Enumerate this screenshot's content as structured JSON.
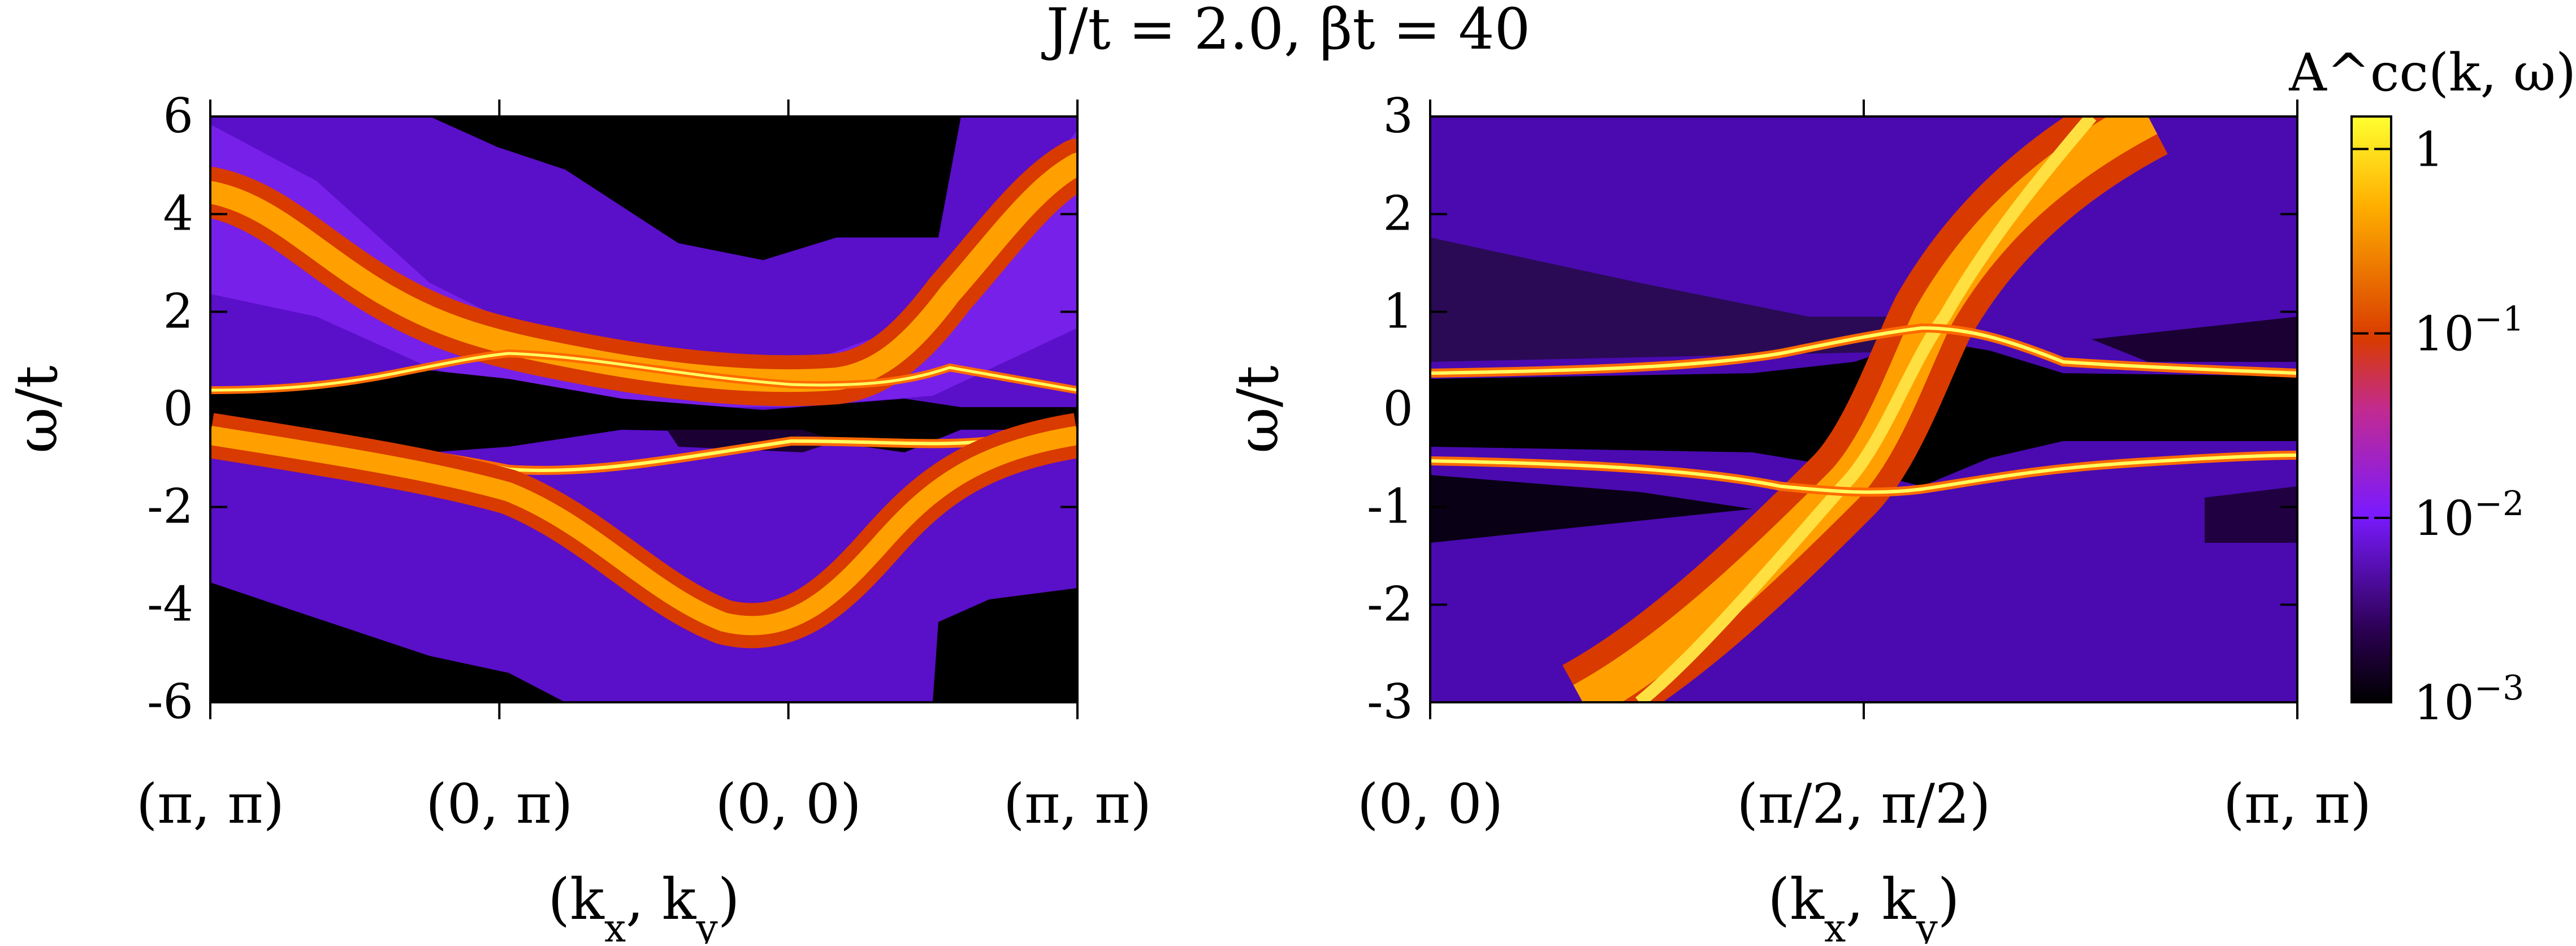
{
  "figure": {
    "title": "J/t = 2.0, βt = 40"
  },
  "chart_data": [
    {
      "type": "heatmap",
      "title": "",
      "xlabel": "(k_x, k_y)",
      "ylabel": "ω/t",
      "x_categories": [
        "(π, π)",
        "(0, π)",
        "(0, 0)",
        "(π, π)"
      ],
      "ylim": [
        -6,
        6
      ],
      "yticks": [
        6,
        4,
        2,
        0,
        -2,
        -4,
        -6
      ],
      "ytick_labels": [
        "6",
        "4",
        "2",
        "0",
        "-2",
        "-4",
        "-6"
      ],
      "bands": [
        {
          "name": "upper broad band",
          "x": [
            0,
            1,
            2,
            2.6,
            3
          ],
          "omega": [
            4.8,
            1.6,
            0.6,
            1.2,
            4.8
          ]
        },
        {
          "name": "upper quasiparticle",
          "x": [
            0,
            0.8,
            1,
            2,
            2.6,
            3
          ],
          "omega": [
            0.4,
            0.7,
            1.0,
            0.4,
            0.6,
            0.4
          ]
        },
        {
          "name": "lower quasiparticle",
          "x": [
            0,
            1,
            2,
            2.6,
            3
          ],
          "omega": [
            -0.5,
            -1.2,
            -0.9,
            -0.7,
            -0.5
          ]
        },
        {
          "name": "lower broad band",
          "x": [
            0,
            1,
            2,
            2.6,
            3
          ],
          "omega": [
            -0.5,
            -1.5,
            -4.6,
            -1.5,
            -0.5
          ]
        }
      ]
    },
    {
      "type": "heatmap",
      "title": "",
      "xlabel": "(k_x, k_y)",
      "ylabel": "ω/t",
      "x_categories": [
        "(0, 0)",
        "(π/2, π/2)",
        "(π, π)"
      ],
      "ylim": [
        -3,
        3
      ],
      "yticks": [
        3,
        2,
        1,
        0,
        -1,
        -2,
        -3
      ],
      "ytick_labels": [
        "3",
        "2",
        "1",
        "0",
        "-1",
        "-2",
        "-3"
      ],
      "bands": [
        {
          "name": "upper quasiparticle",
          "x": [
            0,
            0.5,
            1,
            1.5,
            2
          ],
          "omega": [
            0.4,
            0.45,
            0.8,
            0.45,
            0.4
          ]
        },
        {
          "name": "lower quasiparticle",
          "x": [
            0,
            0.5,
            1,
            1.5,
            2
          ],
          "omega": [
            -0.5,
            -0.55,
            -0.85,
            -0.55,
            -0.45
          ]
        },
        {
          "name": "dispersive band",
          "x": [
            0.4,
            1,
            1.8
          ],
          "omega": [
            -3.2,
            0,
            3.2
          ]
        }
      ]
    }
  ],
  "colorbar": {
    "label": "A^cc(k, ω)",
    "scale": "log",
    "range": [
      0.001,
      1.5
    ],
    "ticks": [
      {
        "value": 1,
        "mantissa": "10",
        "exp": "",
        "plain": "1"
      },
      {
        "value": 0.1,
        "mantissa": "10",
        "exp": "−1"
      },
      {
        "value": 0.01,
        "mantissa": "10",
        "exp": "−2"
      },
      {
        "value": 0.001,
        "mantissa": "10",
        "exp": "−3"
      }
    ],
    "colors": [
      "#000000",
      "#3a0066",
      "#7a1aff",
      "#c22a90",
      "#d83a00",
      "#ff9a00",
      "#ffff30"
    ]
  }
}
